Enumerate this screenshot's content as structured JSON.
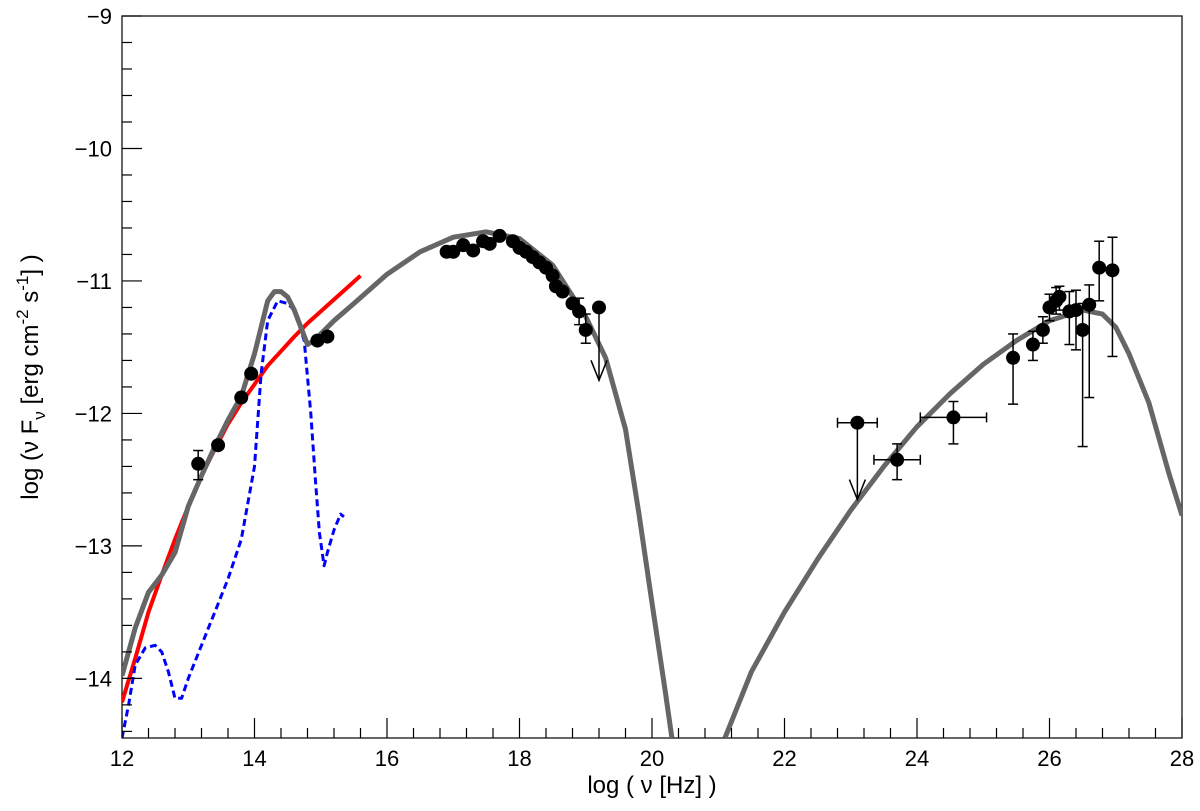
{
  "chart_data": {
    "type": "scatter",
    "title": "",
    "xlabel": "log ( ν [Hz] )",
    "ylabel_parts": {
      "prefix": "log (ν F",
      "sub": "ν",
      "mid1": " [erg cm",
      "sup1": "-2",
      "mid2": " s",
      "sup2": "-1",
      "suffix": "] )"
    },
    "xlim": [
      12,
      28
    ],
    "ylim": [
      -14.45,
      -9
    ],
    "x_ticks": [
      {
        "value": 12,
        "label": "12"
      },
      {
        "value": 14,
        "label": "14"
      },
      {
        "value": 16,
        "label": "16"
      },
      {
        "value": 18,
        "label": "18"
      },
      {
        "value": 20,
        "label": "20"
      },
      {
        "value": 22,
        "label": "22"
      },
      {
        "value": 24,
        "label": "24"
      },
      {
        "value": 26,
        "label": "26"
      },
      {
        "value": 28,
        "label": "28"
      }
    ],
    "y_ticks": [
      {
        "value": -9,
        "label": "−9"
      },
      {
        "value": -10,
        "label": "−10"
      },
      {
        "value": -11,
        "label": "−11"
      },
      {
        "value": -12,
        "label": "−12"
      },
      {
        "value": -13,
        "label": "−13"
      },
      {
        "value": -14,
        "label": "−14"
      }
    ],
    "grid": false,
    "colors": {
      "model_total": "#666666",
      "synchrotron": "#ff0000",
      "host_galaxy": "#0000ff",
      "points": "#000000"
    },
    "series": [
      {
        "kind": "line",
        "color": "#ff0000",
        "width": 4,
        "dash": "",
        "points": [
          [
            12.0,
            -14.18
          ],
          [
            12.2,
            -13.85
          ],
          [
            12.4,
            -13.5
          ],
          [
            12.6,
            -13.22
          ],
          [
            12.8,
            -12.95
          ],
          [
            13.0,
            -12.7
          ],
          [
            13.2,
            -12.47
          ],
          [
            13.4,
            -12.27
          ],
          [
            13.6,
            -12.08
          ],
          [
            13.8,
            -11.92
          ],
          [
            14.0,
            -11.78
          ],
          [
            14.2,
            -11.64
          ],
          [
            14.4,
            -11.53
          ],
          [
            14.6,
            -11.42
          ],
          [
            14.8,
            -11.32
          ],
          [
            15.0,
            -11.23
          ],
          [
            15.2,
            -11.14
          ],
          [
            15.4,
            -11.05
          ],
          [
            15.6,
            -10.96
          ]
        ]
      },
      {
        "kind": "line",
        "color": "#0000ff",
        "width": 3,
        "dash": "7,4",
        "points": [
          [
            12.0,
            -14.45
          ],
          [
            12.1,
            -14.2
          ],
          [
            12.2,
            -13.9
          ],
          [
            12.35,
            -13.77
          ],
          [
            12.5,
            -13.75
          ],
          [
            12.6,
            -13.8
          ],
          [
            12.7,
            -13.95
          ],
          [
            12.8,
            -14.15
          ],
          [
            12.9,
            -14.15
          ],
          [
            13.0,
            -14.0
          ],
          [
            13.2,
            -13.75
          ],
          [
            13.4,
            -13.5
          ],
          [
            13.6,
            -13.25
          ],
          [
            13.8,
            -12.95
          ],
          [
            14.0,
            -12.4
          ],
          [
            14.1,
            -11.7
          ],
          [
            14.2,
            -11.3
          ],
          [
            14.35,
            -11.15
          ],
          [
            14.5,
            -11.17
          ],
          [
            14.6,
            -11.22
          ],
          [
            14.75,
            -11.45
          ],
          [
            14.85,
            -12.0
          ],
          [
            14.92,
            -12.5
          ],
          [
            14.98,
            -12.9
          ],
          [
            15.05,
            -13.15
          ],
          [
            15.1,
            -13.05
          ],
          [
            15.2,
            -12.88
          ],
          [
            15.25,
            -12.82
          ],
          [
            15.3,
            -12.76
          ],
          [
            15.35,
            -12.78
          ]
        ]
      },
      {
        "kind": "line",
        "color": "#666666",
        "width": 5,
        "dash": "",
        "points": [
          [
            12.0,
            -13.98
          ],
          [
            12.2,
            -13.62
          ],
          [
            12.4,
            -13.35
          ],
          [
            12.6,
            -13.22
          ],
          [
            12.8,
            -13.05
          ],
          [
            13.0,
            -12.7
          ],
          [
            13.2,
            -12.47
          ],
          [
            13.4,
            -12.25
          ],
          [
            13.6,
            -12.05
          ],
          [
            13.8,
            -11.87
          ],
          [
            14.0,
            -11.55
          ],
          [
            14.1,
            -11.35
          ],
          [
            14.2,
            -11.15
          ],
          [
            14.3,
            -11.08
          ],
          [
            14.4,
            -11.08
          ],
          [
            14.5,
            -11.12
          ],
          [
            14.6,
            -11.22
          ],
          [
            14.7,
            -11.35
          ],
          [
            14.8,
            -11.48
          ],
          [
            14.9,
            -11.45
          ],
          [
            15.0,
            -11.4
          ],
          [
            15.2,
            -11.3
          ],
          [
            15.5,
            -11.17
          ],
          [
            16.0,
            -10.95
          ],
          [
            16.5,
            -10.78
          ],
          [
            17.0,
            -10.67
          ],
          [
            17.5,
            -10.63
          ],
          [
            18.0,
            -10.68
          ],
          [
            18.5,
            -10.88
          ],
          [
            19.0,
            -11.27
          ],
          [
            19.3,
            -11.58
          ],
          [
            19.6,
            -12.12
          ],
          [
            19.8,
            -12.75
          ],
          [
            20.0,
            -13.43
          ],
          [
            20.2,
            -14.1
          ],
          [
            20.3,
            -14.45
          ]
        ]
      },
      {
        "kind": "line",
        "color": "#666666",
        "width": 5,
        "dash": "",
        "points": [
          [
            21.1,
            -14.45
          ],
          [
            21.5,
            -13.95
          ],
          [
            22.0,
            -13.5
          ],
          [
            22.5,
            -13.1
          ],
          [
            23.0,
            -12.73
          ],
          [
            23.5,
            -12.4
          ],
          [
            24.0,
            -12.1
          ],
          [
            24.5,
            -11.85
          ],
          [
            25.0,
            -11.63
          ],
          [
            25.5,
            -11.45
          ],
          [
            26.0,
            -11.3
          ],
          [
            26.5,
            -11.22
          ],
          [
            26.8,
            -11.25
          ],
          [
            27.0,
            -11.35
          ],
          [
            27.2,
            -11.55
          ],
          [
            27.5,
            -11.92
          ],
          [
            27.8,
            -12.45
          ],
          [
            28.0,
            -12.77
          ]
        ]
      }
    ],
    "points": [
      {
        "x": 13.15,
        "y": -12.38,
        "yerr_lo": 0.12,
        "yerr_hi": 0.1
      },
      {
        "x": 13.45,
        "y": -12.24
      },
      {
        "x": 13.8,
        "y": -11.88
      },
      {
        "x": 13.95,
        "y": -11.7
      },
      {
        "x": 14.95,
        "y": -11.45
      },
      {
        "x": 15.1,
        "y": -11.42
      },
      {
        "x": 16.9,
        "y": -10.78
      },
      {
        "x": 17.0,
        "y": -10.78
      },
      {
        "x": 17.15,
        "y": -10.73
      },
      {
        "x": 17.3,
        "y": -10.77
      },
      {
        "x": 17.45,
        "y": -10.7
      },
      {
        "x": 17.55,
        "y": -10.72
      },
      {
        "x": 17.7,
        "y": -10.66
      },
      {
        "x": 17.9,
        "y": -10.7
      },
      {
        "x": 18.0,
        "y": -10.75
      },
      {
        "x": 18.1,
        "y": -10.78
      },
      {
        "x": 18.2,
        "y": -10.82
      },
      {
        "x": 18.3,
        "y": -10.86
      },
      {
        "x": 18.4,
        "y": -10.9
      },
      {
        "x": 18.5,
        "y": -10.96
      },
      {
        "x": 18.55,
        "y": -11.04
      },
      {
        "x": 18.65,
        "y": -11.08
      },
      {
        "x": 18.8,
        "y": -11.17
      },
      {
        "x": 18.9,
        "y": -11.23,
        "yerr_lo": 0.1,
        "yerr_hi": 0.1
      },
      {
        "x": 19.0,
        "y": -11.37,
        "yerr_lo": 0.1,
        "yerr_hi": 0.12
      },
      {
        "x": 19.2,
        "y": -11.2,
        "upper_limit": true,
        "arrow_to": -11.75
      },
      {
        "x": 23.1,
        "y": -12.07,
        "xerr": 0.3,
        "upper_limit": true,
        "arrow_to": -12.65
      },
      {
        "x": 23.7,
        "y": -12.35,
        "xerr": 0.35,
        "yerr_lo": 0.15,
        "yerr_hi": 0.12
      },
      {
        "x": 24.55,
        "y": -12.03,
        "xerr": 0.5,
        "yerr_lo": 0.2,
        "yerr_hi": 0.12
      },
      {
        "x": 25.45,
        "y": -11.58,
        "yerr_lo": 0.35,
        "yerr_hi": 0.18
      },
      {
        "x": 25.75,
        "y": -11.48,
        "yerr_lo": 0.12,
        "yerr_hi": 0.1
      },
      {
        "x": 25.9,
        "y": -11.37,
        "yerr_lo": 0.1,
        "yerr_hi": 0.1
      },
      {
        "x": 26.0,
        "y": -11.2,
        "yerr_lo": 0.1,
        "yerr_hi": 0.1
      },
      {
        "x": 26.1,
        "y": -11.15,
        "yerr_lo": 0.1,
        "yerr_hi": 0.1
      },
      {
        "x": 26.15,
        "y": -11.12,
        "yerr_lo": 0.1,
        "yerr_hi": 0.08
      },
      {
        "x": 26.3,
        "y": -11.23,
        "yerr_lo": 0.25,
        "yerr_hi": 0.15
      },
      {
        "x": 26.4,
        "y": -11.22,
        "yerr_lo": 0.3,
        "yerr_hi": 0.15
      },
      {
        "x": 26.5,
        "y": -11.37,
        "yerr_lo": 0.88,
        "yerr_hi": 0.2
      },
      {
        "x": 26.6,
        "y": -11.18,
        "yerr_lo": 0.7,
        "yerr_hi": 0.15
      },
      {
        "x": 26.75,
        "y": -10.9,
        "yerr_lo": 0.25,
        "yerr_hi": 0.2
      },
      {
        "x": 26.95,
        "y": -10.92,
        "yerr_lo": 0.65,
        "yerr_hi": 0.25
      }
    ]
  }
}
